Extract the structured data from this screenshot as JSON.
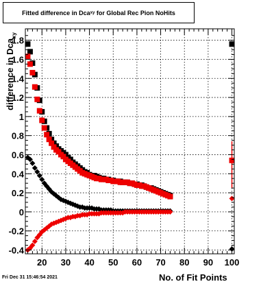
{
  "title": {
    "main": "Fitted difference in Dca",
    "sub": "xy",
    "rest": " for Global Rec Pion NoHits"
  },
  "footer": "Fri Dec 31 15:46:54 2021",
  "chart_data": {
    "type": "scatter",
    "xlabel": "No. of Fit Points",
    "ylabel_main": "difference in Dca",
    "ylabel_sub": "xy",
    "xlim": [
      13,
      101
    ],
    "ylim": [
      -0.44,
      1.92
    ],
    "x_ticks": [
      "20",
      "30",
      "40",
      "50",
      "60",
      "70",
      "80",
      "90",
      "100"
    ],
    "y_ticks": [
      "-0.4",
      "-0.2",
      "0",
      "0.2",
      "0.4",
      "0.6",
      "0.8",
      "1",
      "1.2",
      "1.4",
      "1.6",
      "1.8"
    ],
    "grid": true,
    "colors": {
      "black": "#000000",
      "red": "#ee0000"
    },
    "series": [
      {
        "marker": "square",
        "color": "#000000",
        "x": [
          14,
          15,
          16,
          17,
          18,
          19,
          20,
          21,
          22,
          23,
          24,
          25,
          26,
          27,
          28,
          29,
          30,
          31,
          32,
          33,
          34,
          35,
          36,
          37,
          38,
          39,
          40,
          41,
          42,
          43,
          44,
          45,
          46,
          47,
          48,
          49,
          50,
          51,
          52,
          53,
          54,
          55,
          56,
          57,
          58,
          59,
          60,
          61,
          62,
          63,
          64,
          65,
          66,
          67,
          68,
          69,
          70,
          71,
          72,
          73,
          74,
          100
        ],
        "y": [
          1.76,
          1.68,
          1.56,
          1.44,
          1.3,
          1.17,
          1.05,
          0.95,
          0.88,
          0.82,
          0.76,
          0.72,
          0.69,
          0.66,
          0.64,
          0.62,
          0.6,
          0.57,
          0.55,
          0.52,
          0.5,
          0.48,
          0.46,
          0.44,
          0.42,
          0.41,
          0.39,
          0.38,
          0.38,
          0.37,
          0.36,
          0.35,
          0.35,
          0.34,
          0.34,
          0.33,
          0.33,
          0.32,
          0.32,
          0.32,
          0.31,
          0.31,
          0.31,
          0.3,
          0.3,
          0.29,
          0.29,
          0.28,
          0.28,
          0.27,
          0.26,
          0.25,
          0.25,
          0.24,
          0.23,
          0.22,
          0.21,
          0.2,
          0.19,
          0.18,
          0.17,
          1.76
        ]
      },
      {
        "marker": "square",
        "color": "#ee0000",
        "x": [
          14,
          15,
          16,
          17,
          18,
          19,
          20,
          21,
          22,
          23,
          24,
          25,
          26,
          27,
          28,
          29,
          30,
          31,
          32,
          33,
          34,
          35,
          36,
          37,
          38,
          39,
          40,
          41,
          42,
          43,
          44,
          45,
          46,
          47,
          48,
          49,
          50,
          51,
          52,
          53,
          54,
          55,
          56,
          57,
          58,
          59,
          60,
          61,
          62,
          63,
          64,
          65,
          66,
          67,
          68,
          69,
          70,
          71,
          72,
          73,
          74,
          100
        ],
        "y": [
          1.63,
          1.55,
          1.46,
          1.31,
          1.18,
          1.06,
          0.96,
          0.88,
          0.81,
          0.76,
          0.72,
          0.68,
          0.65,
          0.63,
          0.6,
          0.58,
          0.55,
          0.53,
          0.51,
          0.49,
          0.47,
          0.45,
          0.43,
          0.41,
          0.4,
          0.39,
          0.38,
          0.37,
          0.36,
          0.35,
          0.35,
          0.34,
          0.34,
          0.34,
          0.33,
          0.33,
          0.32,
          0.32,
          0.32,
          0.31,
          0.31,
          0.31,
          0.31,
          0.3,
          0.3,
          0.29,
          0.28,
          0.28,
          0.27,
          0.27,
          0.26,
          0.25,
          0.24,
          0.23,
          0.22,
          0.21,
          0.2,
          0.19,
          0.18,
          0.17,
          0.16,
          0.54
        ]
      },
      {
        "marker": "diamond",
        "color": "#000000",
        "x": [
          14,
          15,
          16,
          17,
          18,
          19,
          20,
          21,
          22,
          23,
          24,
          25,
          26,
          27,
          28,
          29,
          30,
          31,
          32,
          33,
          34,
          35,
          36,
          37,
          38,
          39,
          40,
          41,
          42,
          43,
          44,
          45,
          46,
          47,
          48,
          49,
          50,
          51,
          52,
          53,
          54,
          55,
          56,
          57,
          58,
          59,
          60,
          61,
          62,
          63,
          64,
          65,
          66,
          67,
          68,
          69,
          70,
          71,
          72,
          73,
          74,
          100
        ],
        "y": [
          0.57,
          0.55,
          0.51,
          0.46,
          0.42,
          0.38,
          0.34,
          0.3,
          0.27,
          0.24,
          0.21,
          0.19,
          0.17,
          0.15,
          0.13,
          0.12,
          0.11,
          0.1,
          0.09,
          0.08,
          0.07,
          0.06,
          0.05,
          0.05,
          0.04,
          0.04,
          0.04,
          0.04,
          0.03,
          0.03,
          0.03,
          0.02,
          0.02,
          0.02,
          0.02,
          0.02,
          0.01,
          0.01,
          0.01,
          0.01,
          0.01,
          0.01,
          0.01,
          0.01,
          0.01,
          0.01,
          0.01,
          0.01,
          0.01,
          0.01,
          0.01,
          0.01,
          0.01,
          0.01,
          0.01,
          0.01,
          0.01,
          0.01,
          0.01,
          0.01,
          0.01,
          -0.39
        ]
      },
      {
        "marker": "diamond",
        "color": "#ee0000",
        "x": [
          14,
          15,
          16,
          17,
          18,
          19,
          20,
          21,
          22,
          23,
          24,
          25,
          26,
          27,
          28,
          29,
          30,
          31,
          32,
          33,
          34,
          35,
          36,
          37,
          38,
          39,
          40,
          41,
          42,
          43,
          44,
          45,
          46,
          47,
          48,
          49,
          50,
          51,
          52,
          53,
          54,
          55,
          56,
          57,
          58,
          59,
          60,
          61,
          62,
          63,
          64,
          65,
          66,
          67,
          68,
          69,
          70,
          71,
          72,
          73,
          74,
          100
        ],
        "y": [
          -0.4,
          -0.38,
          -0.35,
          -0.31,
          -0.27,
          -0.24,
          -0.21,
          -0.19,
          -0.17,
          -0.15,
          -0.13,
          -0.12,
          -0.11,
          -0.1,
          -0.09,
          -0.08,
          -0.07,
          -0.06,
          -0.06,
          -0.05,
          -0.05,
          -0.04,
          -0.04,
          -0.03,
          -0.03,
          -0.03,
          -0.02,
          -0.02,
          -0.02,
          -0.02,
          -0.02,
          -0.01,
          -0.01,
          -0.01,
          -0.01,
          -0.01,
          -0.01,
          -0.01,
          -0.01,
          -0.01,
          -0.01,
          0.0,
          0.0,
          0.0,
          0.0,
          0.0,
          0.0,
          0.0,
          0.0,
          0.0,
          0.0,
          0.0,
          0.0,
          0.0,
          0.0,
          0.0,
          0.0,
          0.0,
          0.0,
          0.0,
          0.0,
          0.14
        ]
      }
    ]
  }
}
